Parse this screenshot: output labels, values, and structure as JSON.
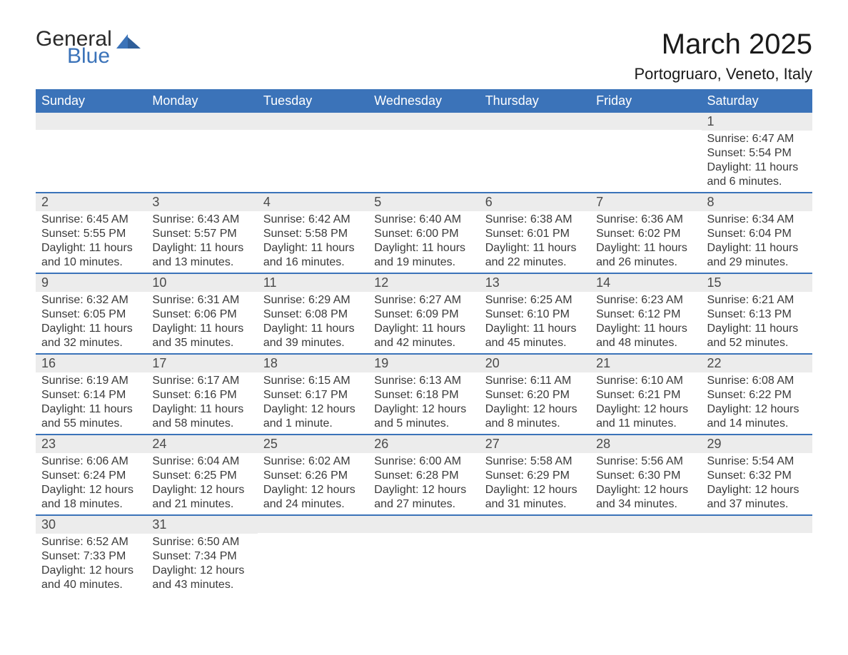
{
  "brand": {
    "name_part1": "General",
    "name_part2": "Blue",
    "color_primary": "#3b73b9",
    "color_text": "#2a2a2a"
  },
  "header": {
    "month_title": "March 2025",
    "location": "Portogruaro, Veneto, Italy"
  },
  "styling": {
    "header_bg": "#3b73b9",
    "header_text_color": "#ffffff",
    "daynum_bg": "#ececec",
    "row_divider_color": "#3b73b9",
    "body_text_color": "#3a3a3a",
    "page_bg": "#ffffff",
    "th_fontsize": 18,
    "daynum_fontsize": 18,
    "detail_fontsize": 16,
    "title_fontsize": 40,
    "location_fontsize": 22
  },
  "weekdays": [
    "Sunday",
    "Monday",
    "Tuesday",
    "Wednesday",
    "Thursday",
    "Friday",
    "Saturday"
  ],
  "labels": {
    "sunrise": "Sunrise",
    "sunset": "Sunset",
    "daylight": "Daylight"
  },
  "weeks": [
    [
      null,
      null,
      null,
      null,
      null,
      null,
      {
        "day": "1",
        "sunrise": "6:47 AM",
        "sunset": "5:54 PM",
        "daylight": "11 hours and 6 minutes."
      }
    ],
    [
      {
        "day": "2",
        "sunrise": "6:45 AM",
        "sunset": "5:55 PM",
        "daylight": "11 hours and 10 minutes."
      },
      {
        "day": "3",
        "sunrise": "6:43 AM",
        "sunset": "5:57 PM",
        "daylight": "11 hours and 13 minutes."
      },
      {
        "day": "4",
        "sunrise": "6:42 AM",
        "sunset": "5:58 PM",
        "daylight": "11 hours and 16 minutes."
      },
      {
        "day": "5",
        "sunrise": "6:40 AM",
        "sunset": "6:00 PM",
        "daylight": "11 hours and 19 minutes."
      },
      {
        "day": "6",
        "sunrise": "6:38 AM",
        "sunset": "6:01 PM",
        "daylight": "11 hours and 22 minutes."
      },
      {
        "day": "7",
        "sunrise": "6:36 AM",
        "sunset": "6:02 PM",
        "daylight": "11 hours and 26 minutes."
      },
      {
        "day": "8",
        "sunrise": "6:34 AM",
        "sunset": "6:04 PM",
        "daylight": "11 hours and 29 minutes."
      }
    ],
    [
      {
        "day": "9",
        "sunrise": "6:32 AM",
        "sunset": "6:05 PM",
        "daylight": "11 hours and 32 minutes."
      },
      {
        "day": "10",
        "sunrise": "6:31 AM",
        "sunset": "6:06 PM",
        "daylight": "11 hours and 35 minutes."
      },
      {
        "day": "11",
        "sunrise": "6:29 AM",
        "sunset": "6:08 PM",
        "daylight": "11 hours and 39 minutes."
      },
      {
        "day": "12",
        "sunrise": "6:27 AM",
        "sunset": "6:09 PM",
        "daylight": "11 hours and 42 minutes."
      },
      {
        "day": "13",
        "sunrise": "6:25 AM",
        "sunset": "6:10 PM",
        "daylight": "11 hours and 45 minutes."
      },
      {
        "day": "14",
        "sunrise": "6:23 AM",
        "sunset": "6:12 PM",
        "daylight": "11 hours and 48 minutes."
      },
      {
        "day": "15",
        "sunrise": "6:21 AM",
        "sunset": "6:13 PM",
        "daylight": "11 hours and 52 minutes."
      }
    ],
    [
      {
        "day": "16",
        "sunrise": "6:19 AM",
        "sunset": "6:14 PM",
        "daylight": "11 hours and 55 minutes."
      },
      {
        "day": "17",
        "sunrise": "6:17 AM",
        "sunset": "6:16 PM",
        "daylight": "11 hours and 58 minutes."
      },
      {
        "day": "18",
        "sunrise": "6:15 AM",
        "sunset": "6:17 PM",
        "daylight": "12 hours and 1 minute."
      },
      {
        "day": "19",
        "sunrise": "6:13 AM",
        "sunset": "6:18 PM",
        "daylight": "12 hours and 5 minutes."
      },
      {
        "day": "20",
        "sunrise": "6:11 AM",
        "sunset": "6:20 PM",
        "daylight": "12 hours and 8 minutes."
      },
      {
        "day": "21",
        "sunrise": "6:10 AM",
        "sunset": "6:21 PM",
        "daylight": "12 hours and 11 minutes."
      },
      {
        "day": "22",
        "sunrise": "6:08 AM",
        "sunset": "6:22 PM",
        "daylight": "12 hours and 14 minutes."
      }
    ],
    [
      {
        "day": "23",
        "sunrise": "6:06 AM",
        "sunset": "6:24 PM",
        "daylight": "12 hours and 18 minutes."
      },
      {
        "day": "24",
        "sunrise": "6:04 AM",
        "sunset": "6:25 PM",
        "daylight": "12 hours and 21 minutes."
      },
      {
        "day": "25",
        "sunrise": "6:02 AM",
        "sunset": "6:26 PM",
        "daylight": "12 hours and 24 minutes."
      },
      {
        "day": "26",
        "sunrise": "6:00 AM",
        "sunset": "6:28 PM",
        "daylight": "12 hours and 27 minutes."
      },
      {
        "day": "27",
        "sunrise": "5:58 AM",
        "sunset": "6:29 PM",
        "daylight": "12 hours and 31 minutes."
      },
      {
        "day": "28",
        "sunrise": "5:56 AM",
        "sunset": "6:30 PM",
        "daylight": "12 hours and 34 minutes."
      },
      {
        "day": "29",
        "sunrise": "5:54 AM",
        "sunset": "6:32 PM",
        "daylight": "12 hours and 37 minutes."
      }
    ],
    [
      {
        "day": "30",
        "sunrise": "6:52 AM",
        "sunset": "7:33 PM",
        "daylight": "12 hours and 40 minutes."
      },
      {
        "day": "31",
        "sunrise": "6:50 AM",
        "sunset": "7:34 PM",
        "daylight": "12 hours and 43 minutes."
      },
      null,
      null,
      null,
      null,
      null
    ]
  ]
}
